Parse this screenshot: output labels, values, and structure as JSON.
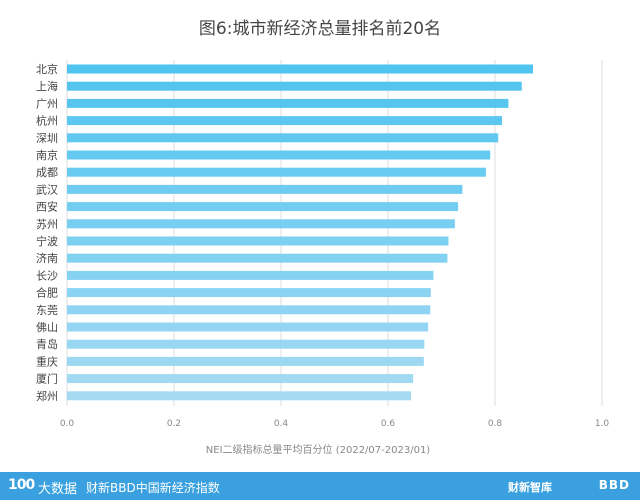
{
  "chart_data": {
    "type": "bar",
    "orientation": "horizontal",
    "title": "图6:城市新经济总量排名前20名",
    "xlabel": "NEI二级指标总量平均百分位 (2022/07-2023/01)",
    "xlim": [
      0,
      1.0
    ],
    "xticks": [
      "0.0",
      "0.2",
      "0.4",
      "0.6",
      "0.8",
      "1.0"
    ],
    "grid": "vertical",
    "categories": [
      "北京",
      "上海",
      "广州",
      "杭州",
      "深圳",
      "南京",
      "成都",
      "武汉",
      "西安",
      "苏州",
      "宁波",
      "济南",
      "长沙",
      "合肥",
      "东莞",
      "佛山",
      "青岛",
      "重庆",
      "厦门",
      "郑州"
    ],
    "values": [
      0.871,
      0.85,
      0.825,
      0.813,
      0.806,
      0.791,
      0.783,
      0.739,
      0.731,
      0.725,
      0.713,
      0.711,
      0.685,
      0.68,
      0.679,
      0.675,
      0.668,
      0.667,
      0.647,
      0.643
    ],
    "colors": {
      "top": "#4ec4ef",
      "bottom": "#a6daf3",
      "grid": "#dddddd",
      "tick_text": "#888888",
      "label_text": "#444444"
    }
  },
  "footer": {
    "logo_text": "100",
    "brand": "大数据",
    "source": "财新BBD中国新经济指数",
    "right_logo": "财新智库",
    "right_logo2": "BBD"
  }
}
